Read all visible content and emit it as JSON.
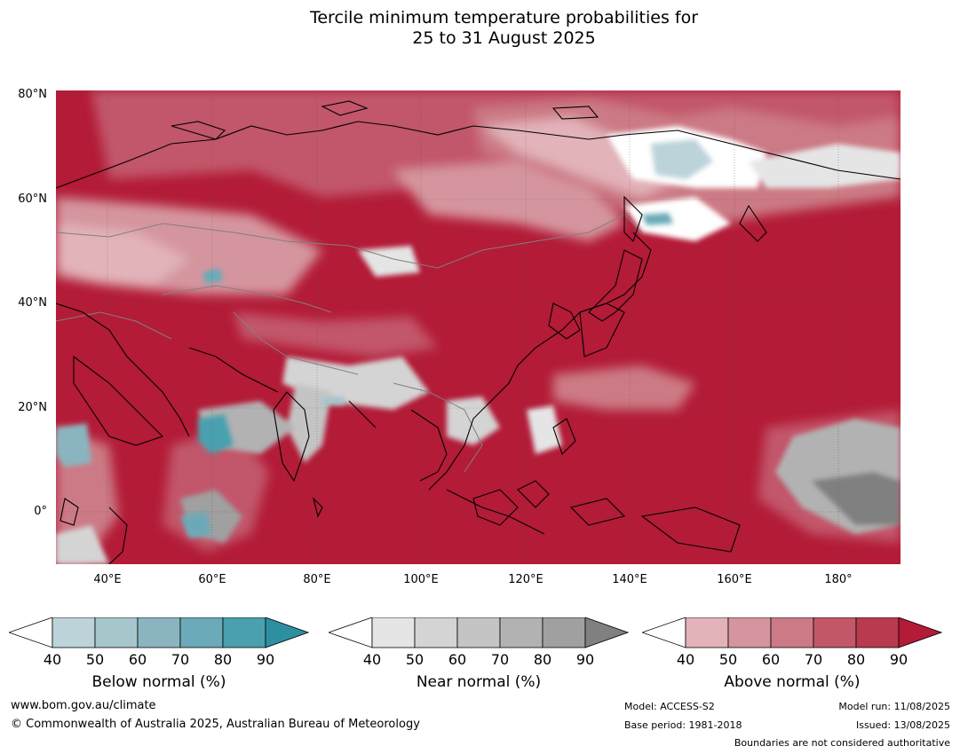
{
  "title": {
    "line1": "Tercile minimum temperature probabilities for",
    "line2": "25 to 31 August 2025"
  },
  "map": {
    "latitude_labels": [
      "80°N",
      "60°N",
      "40°N",
      "20°N",
      "0°"
    ],
    "longitude_labels": [
      "40°E",
      "60°E",
      "80°E",
      "100°E",
      "120°E",
      "140°E",
      "160°E",
      "180°"
    ],
    "extent": {
      "lon": [
        30,
        192
      ],
      "lat": [
        -10,
        81
      ]
    },
    "background_color": "#b31b37",
    "land_outline_color": "#000000",
    "border_color": "#808080"
  },
  "legends": [
    {
      "label": "Below normal (%)",
      "ticks": [
        "40",
        "50",
        "60",
        "70",
        "80",
        "90"
      ],
      "colors": [
        "#ffffff",
        "#bcd3da",
        "#a6c6cc",
        "#8ab5c0",
        "#6baab8",
        "#4aa0ae",
        "#2e8fa0"
      ]
    },
    {
      "label": "Near normal (%)",
      "ticks": [
        "40",
        "50",
        "60",
        "70",
        "80",
        "90"
      ],
      "colors": [
        "#ffffff",
        "#e5e5e5",
        "#d4d4d4",
        "#c4c4c4",
        "#b2b2b2",
        "#a0a0a0",
        "#808080"
      ]
    },
    {
      "label": "Above normal (%)",
      "ticks": [
        "40",
        "50",
        "60",
        "70",
        "80",
        "90"
      ],
      "colors": [
        "#ffffff",
        "#e2b3b9",
        "#d5959e",
        "#cc7a85",
        "#c2576a",
        "#b93a4f",
        "#b31b37"
      ]
    }
  ],
  "footer": {
    "website": "www.bom.gov.au/climate",
    "copyright": "© Commonwealth of Australia 2025, Australian Bureau of Meteorology",
    "model": "Model: ACCESS-S2",
    "base_period": "Base period: 1981-2018",
    "model_run": "Model run: 11/08/2025",
    "issued": "Issued: 13/08/2025",
    "disclaimer": "Boundaries are not considered authoritative"
  }
}
